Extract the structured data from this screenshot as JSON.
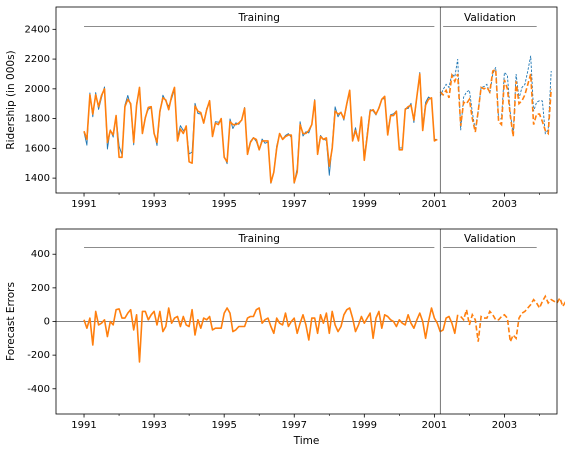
{
  "chart_data": [
    {
      "type": "line",
      "ylabel": "Ridership (in 000s)",
      "xlabel": "",
      "xlim": [
        1990.2,
        2004.5
      ],
      "ylim": [
        1300,
        2550
      ],
      "yticks": [
        1400,
        1600,
        1800,
        2000,
        2200,
        2400
      ],
      "xticks": [
        1991,
        1993,
        1995,
        1997,
        1999,
        2001,
        2003
      ],
      "xticks_minor": [
        1992,
        1994,
        1996,
        1998,
        2000,
        2002,
        2004
      ],
      "split_x": 2001.17,
      "annotations": [
        {
          "text": "Training",
          "x_from": 1991.0,
          "x_to": 2001.0,
          "y_line": 2420,
          "y_text": 2475
        },
        {
          "text": "Validation",
          "x_from": 2001.25,
          "x_to": 2003.92,
          "y_line": 2420,
          "y_text": 2475
        }
      ],
      "series": [
        {
          "color": "#1f77b4",
          "x_start": 1991.0,
          "step": 0.0833333,
          "values": [
            1709,
            1621,
            1973,
            1812,
            1975,
            1862,
            1940,
            2013,
            1596,
            1725,
            1676,
            1814,
            1615,
            1557,
            1891,
            1956,
            1885,
            1623,
            1903,
            1997,
            1704,
            1810,
            1862,
            1875,
            1705,
            1619,
            1837,
            1957,
            1917,
            1882,
            1933,
            1996,
            1673,
            1753,
            1720,
            1734,
            1563,
            1574,
            1903,
            1834,
            1831,
            1776,
            1868,
            1907,
            1686,
            1779,
            1776,
            1783,
            1548,
            1497,
            1798,
            1733,
            1772,
            1761,
            1792,
            1875,
            1571,
            1647,
            1673,
            1646,
            1589,
            1663,
            1634,
            1643,
            1365,
            1440,
            1617,
            1693,
            1663,
            1687,
            1699,
            1673,
            1365,
            1469,
            1779,
            1683,
            1712,
            1704,
            1760,
            1928,
            1578,
            1687,
            1662,
            1653,
            1419,
            1620,
            1879,
            1812,
            1845,
            1789,
            1894,
            1985,
            1662,
            1739,
            1648,
            1811,
            1536,
            1701,
            1860,
            1852,
            1824,
            1877,
            1932,
            1934,
            1712,
            1826,
            1832,
            1852,
            1602,
            1604,
            1867,
            1867,
            1903,
            1773,
            1948,
            2110,
            1743,
            1909,
            1945,
            1929,
            1663,
            1657
          ],
          "dashed_from_index": 123,
          "validation_values": [
            1950,
            1995,
            2030,
            2010,
            2100,
            2080,
            2200,
            1722,
            1943,
            1979,
            1991,
            1843,
            1722,
            1852,
            2010,
            2015,
            2030,
            1968,
            2100,
            2145,
            1794,
            1800,
            2110,
            2090,
            1838,
            1690,
            2100,
            1935,
            2010,
            2030,
            2120,
            2222,
            1850,
            1910,
            1920,
            1918,
            1700,
            1725,
            2120
          ]
        },
        {
          "color": "#ff7f0e",
          "x_start": 1991.0,
          "step": 0.0833333,
          "values": [
            1715,
            1660,
            1960,
            1830,
            1960,
            1880,
            1955,
            2000,
            1640,
            1720,
            1690,
            1820,
            1540,
            1540,
            1880,
            1930,
            1900,
            1640,
            1890,
            2010,
            1700,
            1805,
            1875,
            1880,
            1700,
            1640,
            1850,
            1940,
            1925,
            1860,
            1950,
            2010,
            1650,
            1730,
            1700,
            1750,
            1510,
            1500,
            1885,
            1850,
            1840,
            1770,
            1860,
            1920,
            1680,
            1770,
            1760,
            1800,
            1540,
            1510,
            1780,
            1760,
            1760,
            1770,
            1790,
            1870,
            1560,
            1640,
            1670,
            1660,
            1590,
            1650,
            1650,
            1650,
            1370,
            1440,
            1600,
            1700,
            1660,
            1680,
            1690,
            1690,
            1370,
            1440,
            1760,
            1700,
            1700,
            1720,
            1760,
            1920,
            1560,
            1680,
            1660,
            1670,
            1480,
            1600,
            1850,
            1830,
            1840,
            1800,
            1900,
            1990,
            1650,
            1720,
            1650,
            1810,
            1520,
            1680,
            1850,
            1860,
            1830,
            1870,
            1930,
            1950,
            1690,
            1820,
            1820,
            1850,
            1590,
            1590,
            1860,
            1880,
            1890,
            1790,
            1950,
            2100,
            1720,
            1890,
            1930,
            1940,
            1650,
            1660
          ],
          "dashed_from_index": 123,
          "validation_values": [
            1980,
            1960,
            1990,
            1940,
            2090,
            2050,
            2100,
            1750,
            1910,
            1900,
            1930,
            1800,
            1710,
            1850,
            2010,
            2000,
            2010,
            1980,
            2120,
            2130,
            1780,
            1760,
            2060,
            2000,
            1820,
            1680,
            2050,
            1900,
            1920,
            1960,
            2030,
            2100,
            1760,
            1830,
            1830,
            1780,
            1720,
            1700,
            2000
          ]
        }
      ]
    },
    {
      "type": "line",
      "ylabel": "Forecast Errors",
      "xlabel": "Time",
      "xlim": [
        1990.2,
        2004.5
      ],
      "ylim": [
        -550,
        550
      ],
      "yticks": [
        -400,
        -200,
        0,
        200,
        400
      ],
      "xticks": [
        1991,
        1993,
        1995,
        1997,
        1999,
        2001,
        2003
      ],
      "xticks_minor": [
        1992,
        1994,
        1996,
        1998,
        2000,
        2002,
        2004
      ],
      "split_x": 2001.17,
      "zero_line": 0,
      "annotations": [
        {
          "text": "Training",
          "x_from": 1991.0,
          "x_to": 2001.0,
          "y_line": 440,
          "y_text": 490
        },
        {
          "text": "Validation",
          "x_from": 2001.25,
          "x_to": 2003.92,
          "y_line": 440,
          "y_text": 490
        }
      ],
      "series": [
        {
          "color": "#ff7f0e",
          "x_start": 1991.0,
          "step": 0.0833333,
          "values": [
            10,
            -40,
            20,
            -140,
            60,
            -20,
            -10,
            10,
            -90,
            0,
            -20,
            70,
            75,
            20,
            20,
            50,
            70,
            -50,
            40,
            -240,
            60,
            60,
            10,
            40,
            60,
            -20,
            60,
            -60,
            -30,
            80,
            -10,
            20,
            30,
            -30,
            30,
            -20,
            -30,
            70,
            -80,
            10,
            -40,
            20,
            10,
            30,
            -50,
            -40,
            -40,
            -40,
            50,
            80,
            50,
            -60,
            -50,
            -30,
            -30,
            -30,
            20,
            30,
            30,
            70,
            80,
            -10,
            10,
            20,
            -30,
            -70,
            20,
            -10,
            -20,
            50,
            -30,
            0,
            20,
            -70,
            -10,
            40,
            -20,
            -110,
            20,
            20,
            -70,
            40,
            -10,
            50,
            -70,
            60,
            -20,
            -60,
            -30,
            40,
            70,
            80,
            20,
            -60,
            -20,
            30,
            -10,
            20,
            50,
            -100,
            20,
            60,
            -40,
            40,
            30,
            10,
            0,
            -30,
            10,
            -10,
            -20,
            40,
            -10,
            -40,
            10,
            50,
            0,
            -100,
            0,
            80,
            20,
            -10,
            -60,
            -50,
            20,
            30,
            -10,
            -70,
            40
          ],
          "dashed_from_index": 123,
          "validation_values": [
            30,
            10,
            70,
            -20,
            40,
            10,
            -120,
            30,
            20,
            20,
            60,
            40,
            10,
            10,
            30,
            40,
            20,
            -120,
            -80,
            -100,
            20,
            50,
            60,
            80,
            100,
            130,
            110,
            80,
            120,
            150,
            110,
            130,
            120,
            110,
            140,
            90,
            120
          ]
        }
      ]
    }
  ]
}
